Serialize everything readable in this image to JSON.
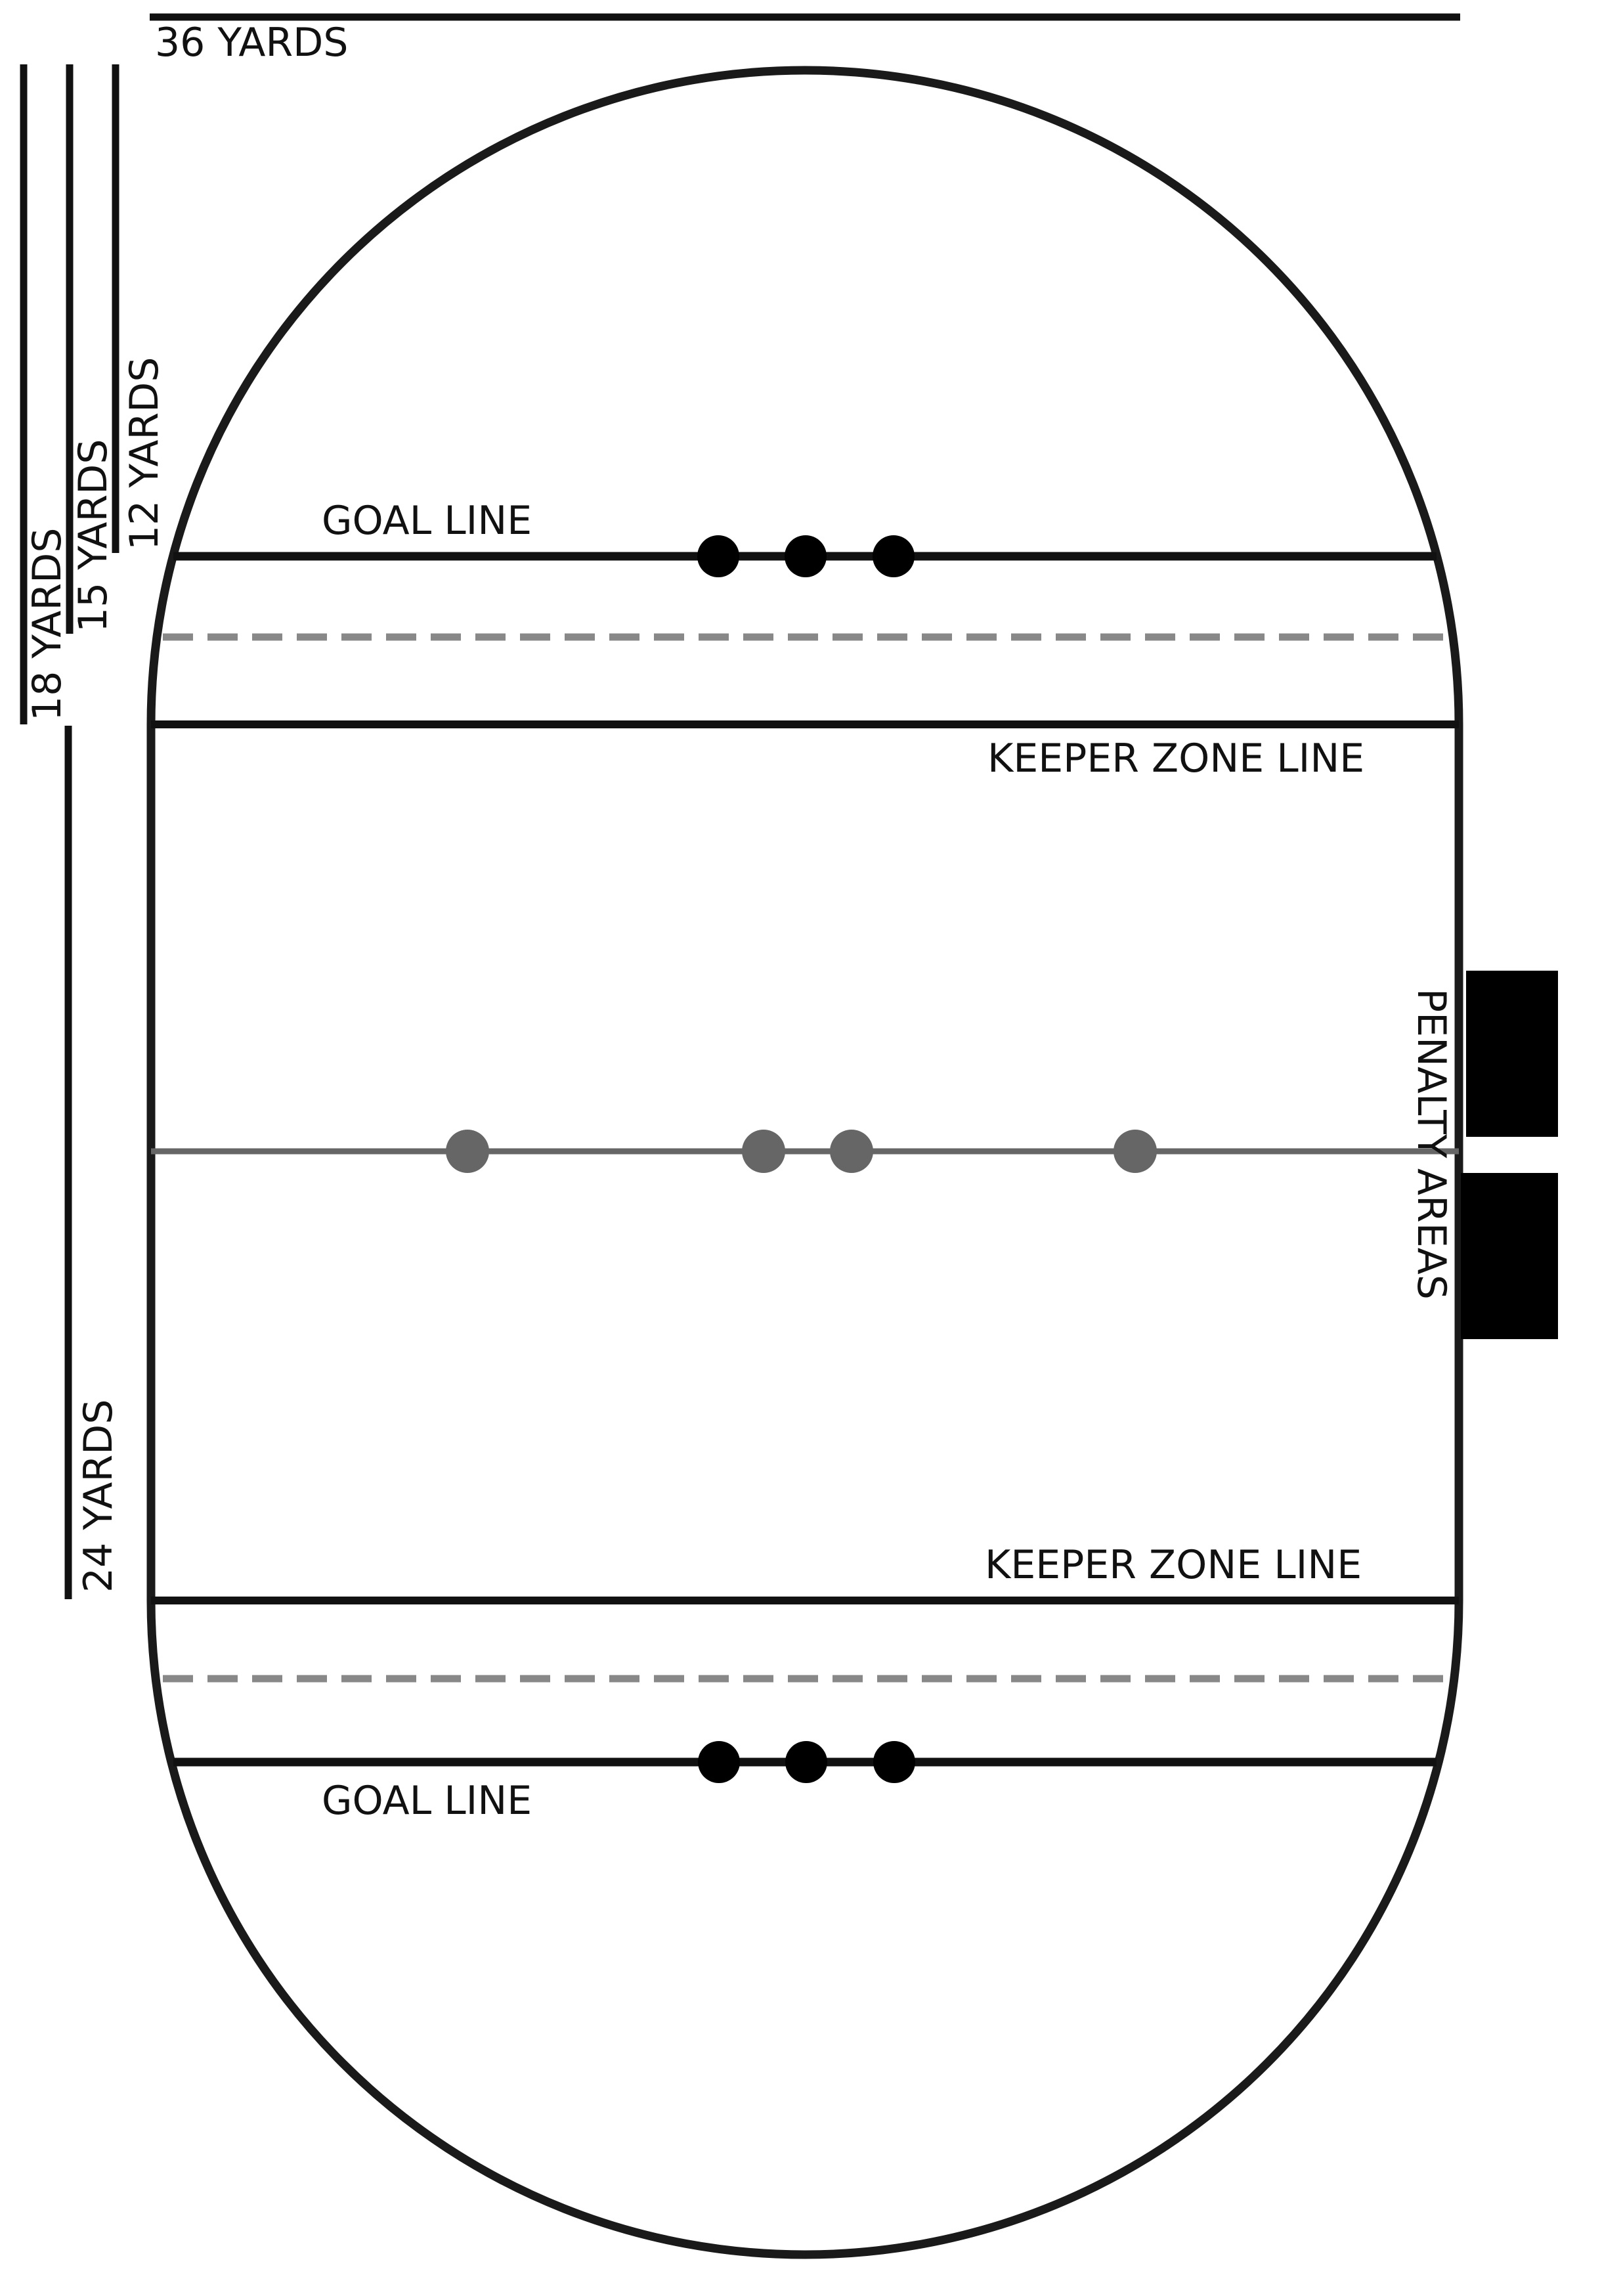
{
  "labels": {
    "width_36": "36 YARDS",
    "dim_18": "18 YARDS",
    "dim_15": "15 YARDS",
    "dim_12": "12 YARDS",
    "dim_24": "24 YARDS",
    "goal_line_top": "GOAL LINE",
    "goal_line_bottom": "GOAL LINE",
    "keeper_zone_top": "KEEPER ZONE LINE",
    "keeper_zone_bottom": "KEEPER ZONE LINE",
    "penalty": "PENALTY",
    "areas": "AREAS"
  },
  "colors": {
    "line": "#111111",
    "outline": "#1a1a1a",
    "dashed": "#888888",
    "midline": "#666666",
    "hoop_marker": "#000000",
    "midfield_marker": "#666666",
    "penalty_box": "#000000"
  }
}
